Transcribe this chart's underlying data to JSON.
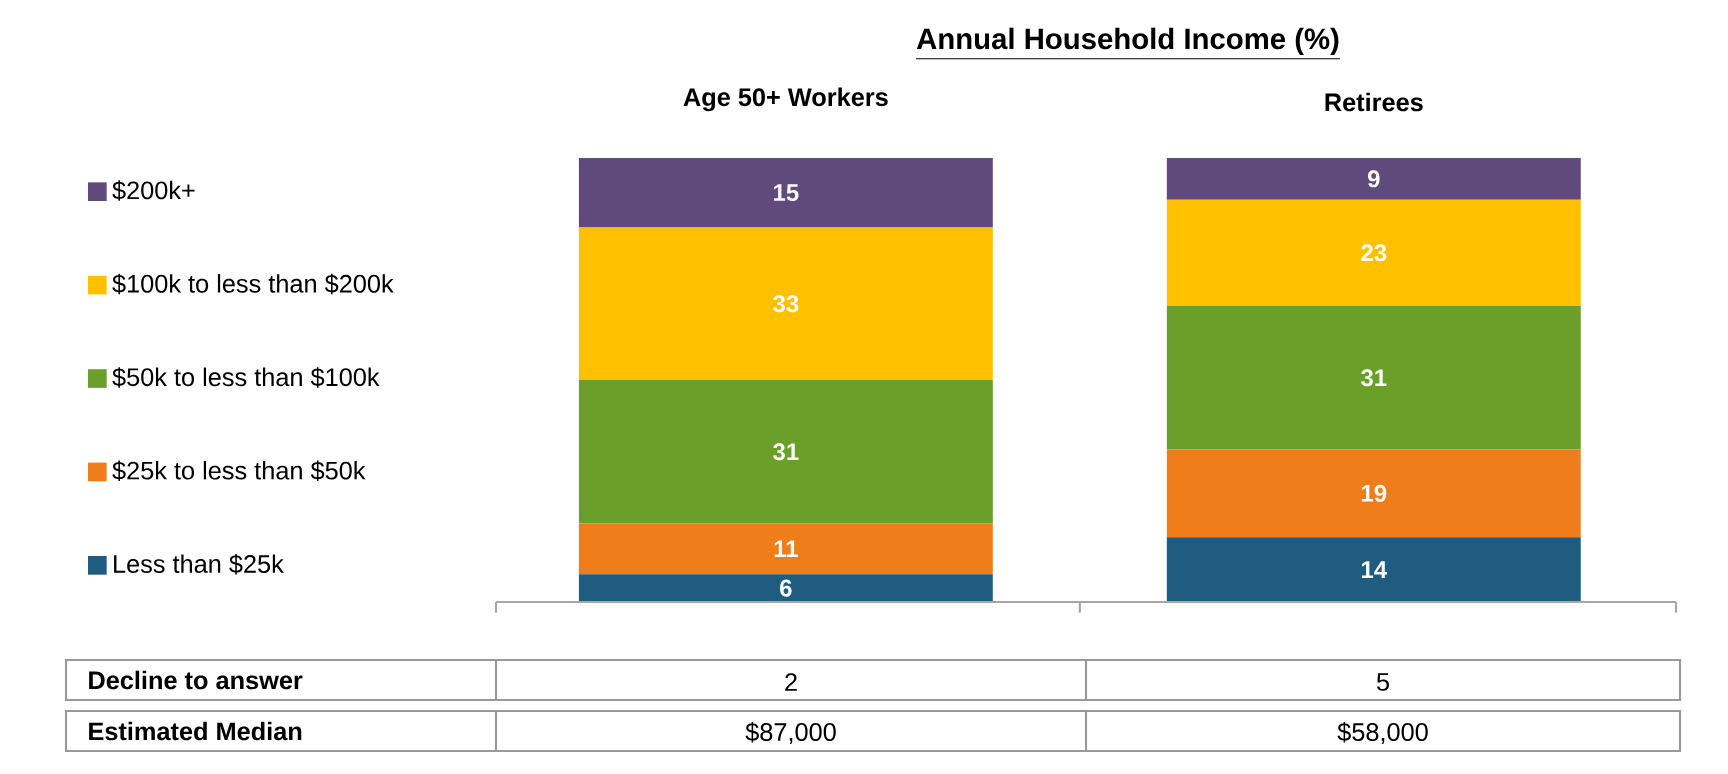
{
  "chart_data": {
    "type": "bar",
    "stacked": true,
    "title": "Annual Household Income (%)",
    "categories": [
      "Age 50+ Workers",
      "Retirees"
    ],
    "series": [
      {
        "name": "Less than $25k",
        "color": "#1f5c7f",
        "values": [
          6,
          14
        ]
      },
      {
        "name": "$25k to less than $50k",
        "color": "#ee7d1a",
        "values": [
          11,
          19
        ]
      },
      {
        "name": "$50k to less than $100k",
        "color": "#6a9f2a",
        "values": [
          31,
          31
        ]
      },
      {
        "name": "$100k to less than $200k",
        "color": "#ffc000",
        "values": [
          33,
          23
        ]
      },
      {
        "name": "$200k+",
        "color": "#604a7b",
        "values": [
          15,
          9
        ]
      }
    ],
    "data_labels": true,
    "legend": "left",
    "annotations": [
      "Decline to answer",
      "2",
      "5",
      "Estimated Median",
      "$87,000",
      "$58,000"
    ]
  }
}
